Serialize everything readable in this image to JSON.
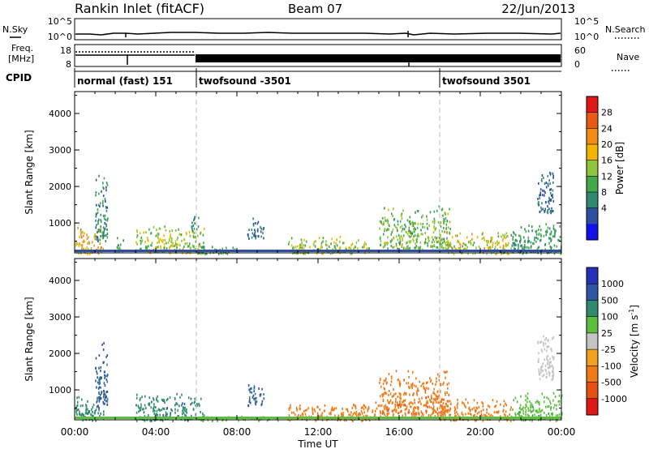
{
  "header": {
    "station": "Rankin Inlet (fitACF)",
    "beam": "Beam 07",
    "date": "22/Jun/2013"
  },
  "noise_panel": {
    "left_label": "N.Sky",
    "right_label": "N.Search",
    "left_ticks": [
      "10^5",
      "10^0"
    ],
    "right_ticks": [
      "10^5",
      "10^0"
    ]
  },
  "freq_panel": {
    "left_label_line1": "Freq.",
    "left_label_line2": "[MHz]",
    "right_label": "Nave",
    "left_ticks": [
      "18",
      "8"
    ],
    "right_ticks": [
      "60",
      "0"
    ]
  },
  "cpid": {
    "label": "CPID",
    "segments": [
      {
        "name": "normal (fast) 151",
        "start_hour": 0
      },
      {
        "name": "twofsound -3501",
        "start_hour": 6
      },
      {
        "name": "twofsound 3501",
        "start_hour": 18
      }
    ]
  },
  "axes": {
    "xlabel": "Time UT",
    "x_ticks": [
      "00:00",
      "04:00",
      "08:00",
      "12:00",
      "16:00",
      "20:00",
      "00:00"
    ],
    "ylabel": "Slant Range [km]",
    "y_ticks": [
      "1000",
      "2000",
      "3000",
      "4000"
    ]
  },
  "power_scale": {
    "title": "Power [dB]",
    "tick_labels": [
      "28",
      "24",
      "20",
      "16",
      "12",
      "8",
      "4"
    ],
    "colors": [
      "#1212e8",
      "#2f4fa0",
      "#2f8a6e",
      "#43a84c",
      "#8fc43c",
      "#f2b600",
      "#f28c14",
      "#e85a14",
      "#e01818"
    ]
  },
  "velocity_scale": {
    "title": "Velocity [m s",
    "title_sup": "-1",
    "title_end": "]",
    "tick_labels": [
      "1000",
      "500",
      "100",
      "25",
      "-25",
      "-100",
      "-500",
      "-1000"
    ],
    "colors": [
      "#2432b8",
      "#2f55a5",
      "#2f8a6e",
      "#5cbf3c",
      "#c4c4c4",
      "#f2a020",
      "#f07a18",
      "#e85010",
      "#e01818"
    ]
  },
  "chart_data": {
    "type": "heatmap",
    "title": "Rankin Inlet (fitACF)",
    "xlabel": "Time UT",
    "ylabel": "Slant Range [km]",
    "xlim": [
      0,
      24
    ],
    "ylim": [
      180,
      4600
    ],
    "x_tick_hours": [
      0,
      4,
      8,
      12,
      16,
      20,
      24
    ],
    "y_tick_values": [
      1000,
      2000,
      3000,
      4000
    ],
    "cpid_change_hours": [
      6,
      18
    ],
    "power_ticks_db": [
      4,
      8,
      12,
      16,
      20,
      24,
      28
    ],
    "velocity_ticks": [
      1000,
      500,
      100,
      25,
      -25,
      -100,
      -500,
      -1000
    ],
    "power_echo_regions": [
      {
        "t_start": 0.0,
        "t_end": 1.4,
        "r_min": 180,
        "r_max": 900,
        "power_db": 22
      },
      {
        "t_start": 1.0,
        "t_end": 1.6,
        "r_min": 500,
        "r_max": 2400,
        "power_db": 10
      },
      {
        "t_start": 2.0,
        "t_end": 2.4,
        "r_min": 250,
        "r_max": 700,
        "power_db": 16
      },
      {
        "t_start": 3.0,
        "t_end": 6.4,
        "r_min": 180,
        "r_max": 950,
        "power_db": 18
      },
      {
        "t_start": 5.7,
        "t_end": 6.1,
        "r_min": 800,
        "r_max": 1300,
        "power_db": 10
      },
      {
        "t_start": 6.0,
        "t_end": 8.0,
        "r_min": 180,
        "r_max": 400,
        "power_db": 14
      },
      {
        "t_start": 8.5,
        "t_end": 9.3,
        "r_min": 600,
        "r_max": 1200,
        "power_db": 8
      },
      {
        "t_start": 10.5,
        "t_end": 14.5,
        "r_min": 180,
        "r_max": 650,
        "power_db": 18
      },
      {
        "t_start": 15.0,
        "t_end": 18.5,
        "r_min": 300,
        "r_max": 1500,
        "power_db": 16
      },
      {
        "t_start": 18.0,
        "t_end": 21.5,
        "r_min": 180,
        "r_max": 800,
        "power_db": 20
      },
      {
        "t_start": 21.5,
        "t_end": 24.0,
        "r_min": 180,
        "r_max": 1000,
        "power_db": 12
      },
      {
        "t_start": 22.8,
        "t_end": 23.6,
        "r_min": 1300,
        "r_max": 2600,
        "power_db": 8
      }
    ],
    "velocity_echo_regions": [
      {
        "t_start": 0.0,
        "t_end": 1.4,
        "r_min": 180,
        "r_max": 900,
        "velocity": 200
      },
      {
        "t_start": 1.0,
        "t_end": 1.6,
        "r_min": 500,
        "r_max": 2400,
        "velocity": 600
      },
      {
        "t_start": 3.0,
        "t_end": 6.4,
        "r_min": 180,
        "r_max": 950,
        "velocity": 400
      },
      {
        "t_start": 6.0,
        "t_end": 10.0,
        "r_min": 180,
        "r_max": 320,
        "velocity": 60
      },
      {
        "t_start": 8.5,
        "t_end": 9.3,
        "r_min": 600,
        "r_max": 1200,
        "velocity": 600
      },
      {
        "t_start": 10.5,
        "t_end": 15.0,
        "r_min": 180,
        "r_max": 700,
        "velocity": -300
      },
      {
        "t_start": 15.0,
        "t_end": 18.5,
        "r_min": 300,
        "r_max": 1600,
        "velocity": -400
      },
      {
        "t_start": 18.0,
        "t_end": 21.5,
        "r_min": 180,
        "r_max": 800,
        "velocity": -200
      },
      {
        "t_start": 21.5,
        "t_end": 24.0,
        "r_min": 180,
        "r_max": 1000,
        "velocity": 80
      },
      {
        "t_start": 22.8,
        "t_end": 23.6,
        "r_min": 1300,
        "r_max": 2600,
        "velocity": 10
      }
    ]
  }
}
